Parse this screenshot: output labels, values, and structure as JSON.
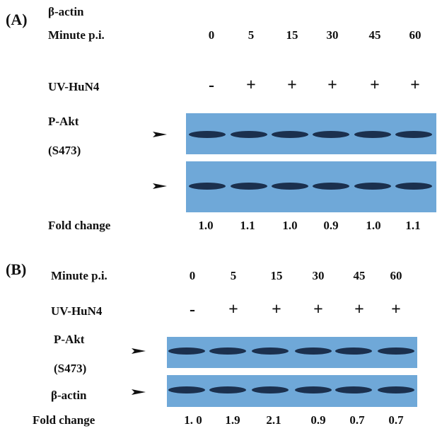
{
  "panel_a": {
    "label": "(A)",
    "note": "β-actin",
    "time_label": "Minute p.i.",
    "times": [
      0,
      5,
      15,
      30,
      45,
      60
    ],
    "treatment_label": "UV-HuN4",
    "treatment": [
      "-",
      "+",
      "+",
      "+",
      "+",
      "+"
    ],
    "protein_label": "P-Akt",
    "site_label": "(S473)",
    "fold_label": "Fold change",
    "fold": [
      "1.0",
      "1.1",
      "1.0",
      "0.9",
      "1.0",
      "1.1"
    ]
  },
  "panel_b": {
    "label": "(B)",
    "time_label": "Minute p.i.",
    "times": [
      0,
      5,
      15,
      30,
      45,
      60
    ],
    "treatment_label": "UV-HuN4",
    "treatment": [
      "-",
      "+",
      "+",
      "+",
      "+",
      "+"
    ],
    "protein_label": "P-Akt",
    "site_label": "(S473)",
    "loading_label": "β-actin",
    "fold_label": "Fold change",
    "fold": [
      "1. 0",
      "1.9",
      "2.1",
      "0.9",
      "0.7",
      "0.7"
    ]
  }
}
